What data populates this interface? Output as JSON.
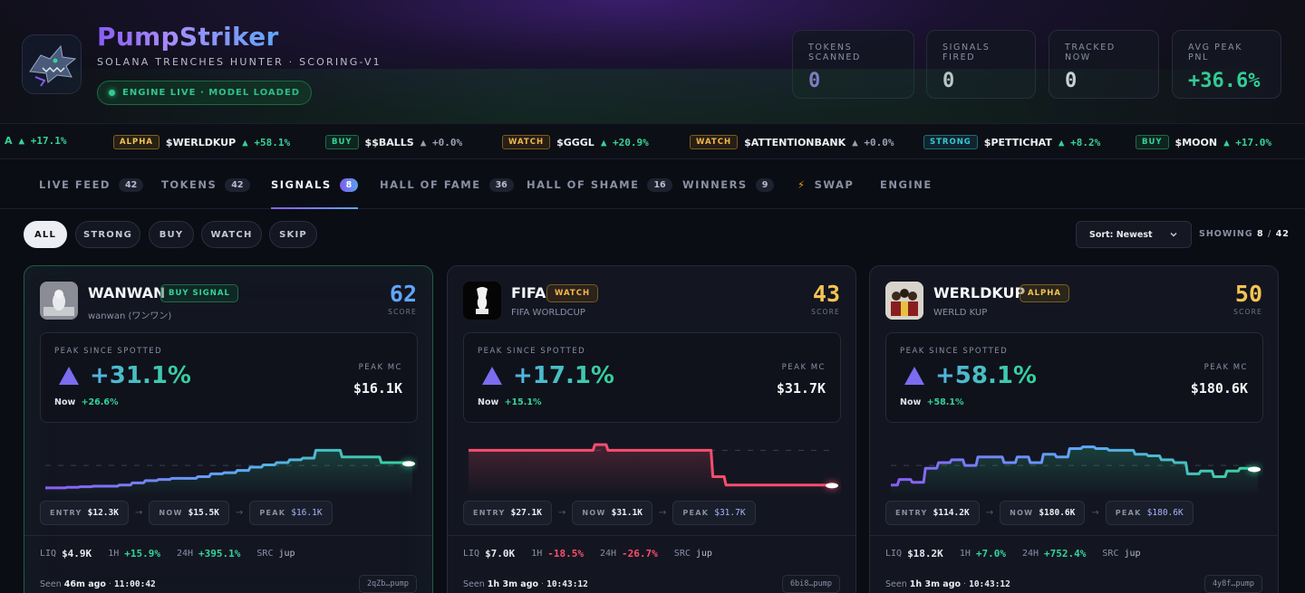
{
  "header": {
    "title": "PumpStriker",
    "subtitle": "SOLANA TRENCHES HUNTER · SCORING-V1",
    "engine_status": "ENGINE LIVE · MODEL LOADED",
    "stats": [
      {
        "label": "TOKENS SCANNED",
        "value": "0",
        "color": "#a78bfa"
      },
      {
        "label": "SIGNALS FIRED",
        "value": "0",
        "color": "#f2f3f7"
      },
      {
        "label": "TRACKED NOW",
        "value": "0",
        "color": "#f2f3f7"
      },
      {
        "label": "AVG PEAK PNL",
        "value": "+36.6%",
        "color": "#34d399"
      }
    ]
  },
  "ticker": [
    {
      "tag": "",
      "symbol": "A",
      "change": "▲ +17.1%"
    },
    {
      "tag": "ALPHA",
      "symbol": "$WERLDKUP",
      "change": "▲ +58.1%"
    },
    {
      "tag": "BUY",
      "symbol": "$$BALLS",
      "change": "▲ +0.0%"
    },
    {
      "tag": "WATCH",
      "symbol": "$GGGL",
      "change": "▲ +20.9%"
    },
    {
      "tag": "WATCH",
      "symbol": "$ATTENTIONBANK",
      "change": "▲ +0.0%"
    },
    {
      "tag": "STRONG",
      "symbol": "$PETTICHAT",
      "change": "▲ +8.2%"
    },
    {
      "tag": "BUY",
      "symbol": "$MOON",
      "change": "▲ +17.0%"
    }
  ],
  "tabs": [
    {
      "label": "LIVE FEED",
      "count": "42"
    },
    {
      "label": "TOKENS",
      "count": "42"
    },
    {
      "label": "SIGNALS",
      "count": "8"
    },
    {
      "label": "HALL OF FAME",
      "count": "36"
    },
    {
      "label": "HALL OF SHAME",
      "count": "16"
    },
    {
      "label": "WINNERS",
      "count": "9"
    },
    {
      "label": "SWAP",
      "count": ""
    },
    {
      "label": "ENGINE",
      "count": ""
    }
  ],
  "filters": [
    "ALL",
    "STRONG",
    "BUY",
    "WATCH",
    "SKIP"
  ],
  "sort": {
    "label": "Sort: Newest"
  },
  "showing": {
    "prefix": "SHOWING",
    "shown": "8",
    "sep": "/",
    "total": "42"
  },
  "cards": [
    {
      "name": "WANWAN",
      "badge": "BUY SIGNAL",
      "subname": "wanwan (ワンワン)",
      "score": "62",
      "score_label": "SCORE",
      "score_color": "#60a5fa",
      "peak_label": "PEAK SINCE SPOTTED",
      "peak": "+31.1%",
      "now_label": "Now",
      "now": "+26.6%",
      "peak_mc_label": "PEAK MC",
      "peak_mc": "$16.1K",
      "entry": "$12.3K",
      "now_mc": "$15.5K",
      "peak_chip": "$16.1K",
      "liq": "$4.9K",
      "h1": "+15.9%",
      "h24": "+395.1%",
      "src": "jup",
      "seen_ago": "46m ago",
      "seen_time": "11:00:42",
      "addr": "2qZb…pump",
      "trend": "up",
      "spark": [
        0.05,
        0.05,
        0.06,
        0.07,
        0.08,
        0.08,
        0.1,
        0.14,
        0.18,
        0.2,
        0.22,
        0.22,
        0.25,
        0.3,
        0.32,
        0.36,
        0.42,
        0.46,
        0.5,
        0.55,
        0.58,
        0.72,
        0.72,
        0.6,
        0.6,
        0.6,
        0.5,
        0.5,
        0.48
      ]
    },
    {
      "name": "FIFA",
      "badge": "WATCH",
      "subname": "FIFA WORLDCUP",
      "score": "43",
      "score_label": "SCORE",
      "score_color": "#f5c451",
      "peak_label": "PEAK SINCE SPOTTED",
      "peak": "+17.1%",
      "now_label": "Now",
      "now": "+15.1%",
      "peak_mc_label": "PEAK MC",
      "peak_mc": "$31.7K",
      "entry": "$27.1K",
      "now_mc": "$31.1K",
      "peak_chip": "$31.7K",
      "liq": "$7.0K",
      "h1": "-18.5%",
      "h24": "-26.7%",
      "src": "jup",
      "seen_ago": "1h 3m ago",
      "seen_time": "10:43:12",
      "addr": "6bi8…pump",
      "trend": "down",
      "spark": [
        0.72,
        0.72,
        0.72,
        0.72,
        0.72,
        0.72,
        0.72,
        0.72,
        0.72,
        0.72,
        0.82,
        0.72,
        0.72,
        0.72,
        0.72,
        0.72,
        0.72,
        0.72,
        0.72,
        0.25,
        0.1,
        0.1,
        0.1,
        0.1,
        0.1,
        0.1,
        0.1,
        0.1,
        0.09
      ]
    },
    {
      "name": "WERLDKUP",
      "badge": "ALPHA",
      "subname": "WERLD KUP",
      "score": "50",
      "score_label": "SCORE",
      "score_color": "#f5c451",
      "peak_label": "PEAK SINCE SPOTTED",
      "peak": "+58.1%",
      "now_label": "Now",
      "now": "+58.1%",
      "peak_mc_label": "PEAK MC",
      "peak_mc": "$180.6K",
      "entry": "$114.2K",
      "now_mc": "$180.6K",
      "peak_chip": "$180.6K",
      "liq": "$18.2K",
      "h1": "+7.0%",
      "h24": "+752.4%",
      "src": "jup",
      "seen_ago": "1h 3m ago",
      "seen_time": "10:43:12",
      "addr": "4y8f…pump",
      "trend": "mixed",
      "spark": [
        0.1,
        0.2,
        0.15,
        0.4,
        0.5,
        0.55,
        0.45,
        0.6,
        0.6,
        0.5,
        0.6,
        0.5,
        0.65,
        0.6,
        0.75,
        0.78,
        0.75,
        0.72,
        0.72,
        0.65,
        0.62,
        0.55,
        0.5,
        0.3,
        0.35,
        0.25,
        0.35,
        0.4,
        0.38
      ]
    }
  ],
  "card_labels": {
    "entry": "ENTRY",
    "now": "NOW",
    "peak": "PEAK",
    "liq": "LIQ",
    "h1": "1H",
    "h24": "24H",
    "src": "SRC",
    "seen": "Seen"
  },
  "icons": {
    "logo": "shark-logo-icon",
    "swap": "lightning-icon",
    "sort": "chevron-down-icon"
  }
}
